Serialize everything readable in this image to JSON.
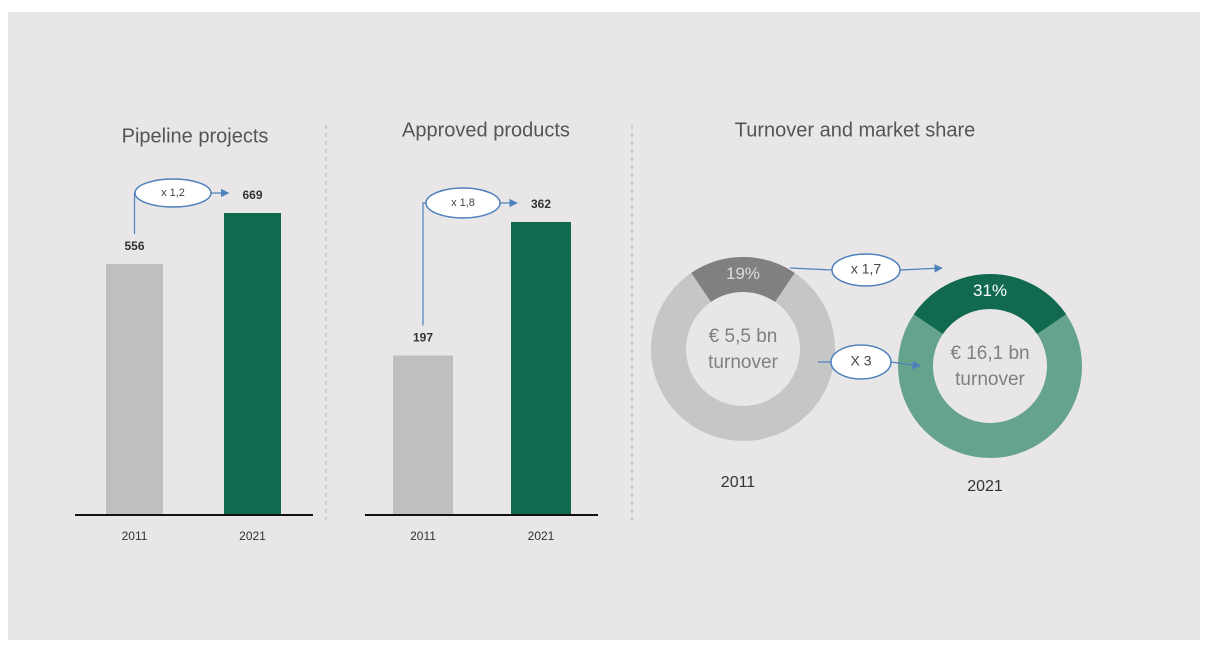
{
  "chart_data": [
    {
      "type": "bar",
      "title": "Pipeline projects",
      "categories": [
        "2011",
        "2021"
      ],
      "values": [
        556,
        669
      ],
      "colors": [
        "#bfbfbf",
        "#116a50"
      ],
      "annotation": "x 1,2"
    },
    {
      "type": "bar",
      "title": "Approved products",
      "categories": [
        "2011",
        "2021"
      ],
      "values": [
        197,
        362
      ],
      "colors": [
        "#bfbfbf",
        "#116a50"
      ],
      "annotation": "x 1,8"
    },
    {
      "type": "donut",
      "title": "Turnover and market share",
      "categories": [
        "2011",
        "2021"
      ],
      "values": [
        19,
        31
      ],
      "value_labels": [
        "19%",
        "31%"
      ],
      "colors": [
        "#808080",
        "#116a50"
      ],
      "ring_colors": [
        "#c6c6c6",
        "#66a38d"
      ],
      "center_labels": [
        [
          "€ 5,5 bn",
          "turnover"
        ],
        [
          "€ 16,1 bn",
          "turnover"
        ]
      ],
      "annotations": [
        "x 1,7",
        "X 3"
      ]
    }
  ]
}
